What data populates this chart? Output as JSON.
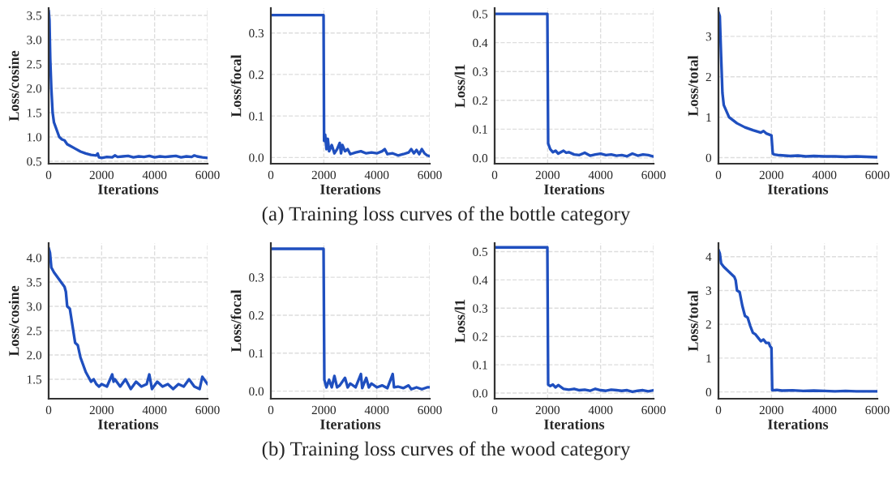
{
  "chart_data": [
    {
      "type": "line",
      "xlabel": "Iterations",
      "ylabel": "Loss/cosine",
      "color": "#1f4fbf",
      "grid": true,
      "xlim": [
        0,
        6000
      ],
      "xticks": [
        0,
        2000,
        4000,
        6000
      ],
      "ylim": [
        0.45,
        3.65
      ],
      "yticks": [
        0.5,
        {
          "value": 1,
          "label": "1.0"
        },
        1.5,
        {
          "value": 2,
          "label": "2.0"
        },
        2.5,
        {
          "value": 3,
          "label": "3.0"
        },
        3.5
      ],
      "annotations": [
        "(a) Training loss curves of the bottle category"
      ],
      "x": [
        0,
        30,
        60,
        100,
        150,
        200,
        300,
        400,
        500,
        600,
        700,
        800,
        1000,
        1200,
        1400,
        1600,
        1800,
        1850,
        1900,
        2000,
        2200,
        2400,
        2500,
        2600,
        2800,
        3000,
        3200,
        3400,
        3600,
        3800,
        4000,
        4200,
        4400,
        4600,
        4800,
        5000,
        5200,
        5400,
        5500,
        5600,
        5800,
        6000
      ],
      "values": [
        3.6,
        3.4,
        2.6,
        2.0,
        1.5,
        1.3,
        1.15,
        1.0,
        0.95,
        0.93,
        0.85,
        0.82,
        0.76,
        0.7,
        0.66,
        0.63,
        0.62,
        0.66,
        0.58,
        0.57,
        0.59,
        0.58,
        0.62,
        0.59,
        0.6,
        0.61,
        0.58,
        0.6,
        0.59,
        0.61,
        0.58,
        0.6,
        0.59,
        0.6,
        0.61,
        0.58,
        0.6,
        0.59,
        0.62,
        0.6,
        0.58,
        0.57
      ]
    },
    {
      "type": "line",
      "xlabel": "Iterations",
      "ylabel": "Loss/focal",
      "color": "#1f4fbf",
      "grid": true,
      "xlim": [
        0,
        6000
      ],
      "xticks": [
        0,
        2000,
        4000,
        6000
      ],
      "ylim": [
        -0.015,
        0.36
      ],
      "yticks": [
        {
          "value": 0,
          "label": "0.0"
        },
        0.1,
        0.2,
        0.3
      ],
      "x": [
        0,
        1990,
        2010,
        2050,
        2100,
        2150,
        2200,
        2300,
        2400,
        2500,
        2600,
        2650,
        2700,
        2800,
        2900,
        3000,
        3200,
        3400,
        3600,
        3800,
        4000,
        4200,
        4300,
        4400,
        4600,
        4800,
        5000,
        5200,
        5300,
        5400,
        5500,
        5600,
        5700,
        5800,
        5900,
        6000
      ],
      "values": [
        0.343,
        0.343,
        0.04,
        0.055,
        0.02,
        0.045,
        0.015,
        0.03,
        0.01,
        0.02,
        0.035,
        0.01,
        0.03,
        0.015,
        0.02,
        0.008,
        0.012,
        0.015,
        0.01,
        0.012,
        0.01,
        0.015,
        0.02,
        0.008,
        0.01,
        0.005,
        0.008,
        0.012,
        0.02,
        0.01,
        0.018,
        0.008,
        0.02,
        0.01,
        0.005,
        0.003
      ]
    },
    {
      "type": "line",
      "xlabel": "Iterations",
      "ylabel": "Loss/l1",
      "color": "#1f4fbf",
      "grid": true,
      "xlim": [
        0,
        6000
      ],
      "xticks": [
        0,
        2000,
        4000,
        6000
      ],
      "ylim": [
        -0.02,
        0.52
      ],
      "yticks": [
        {
          "value": 0,
          "label": "0.0"
        },
        0.1,
        0.2,
        0.3,
        0.4,
        0.5
      ],
      "x": [
        0,
        1990,
        2020,
        2100,
        2200,
        2300,
        2400,
        2500,
        2600,
        2700,
        2800,
        3000,
        3200,
        3400,
        3600,
        3800,
        4000,
        4200,
        4400,
        4600,
        4800,
        5000,
        5200,
        5400,
        5600,
        5800,
        6000
      ],
      "values": [
        0.5,
        0.5,
        0.05,
        0.03,
        0.02,
        0.025,
        0.015,
        0.02,
        0.025,
        0.018,
        0.02,
        0.012,
        0.01,
        0.018,
        0.008,
        0.012,
        0.015,
        0.01,
        0.012,
        0.008,
        0.01,
        0.006,
        0.015,
        0.008,
        0.012,
        0.01,
        0.005
      ]
    },
    {
      "type": "line",
      "xlabel": "Iterations",
      "ylabel": "Loss/total",
      "color": "#1f4fbf",
      "grid": true,
      "xlim": [
        0,
        6000
      ],
      "xticks": [
        0,
        2000,
        4000,
        6000
      ],
      "ylim": [
        -0.15,
        3.7
      ],
      "yticks": [
        0,
        1,
        2,
        3
      ],
      "x": [
        0,
        50,
        100,
        150,
        200,
        300,
        400,
        500,
        700,
        1000,
        1300,
        1600,
        1700,
        1800,
        2000,
        2050,
        2100,
        2300,
        2500,
        2700,
        3000,
        3300,
        3600,
        4000,
        4400,
        4800,
        5200,
        5600,
        6000
      ],
      "values": [
        3.6,
        3.5,
        2.5,
        1.6,
        1.3,
        1.15,
        1.0,
        0.95,
        0.85,
        0.75,
        0.68,
        0.62,
        0.66,
        0.6,
        0.55,
        0.1,
        0.08,
        0.06,
        0.05,
        0.04,
        0.05,
        0.03,
        0.04,
        0.03,
        0.03,
        0.02,
        0.03,
        0.02,
        0.01
      ]
    },
    {
      "type": "line",
      "xlabel": "Iterations",
      "ylabel": "Loss/cosine",
      "color": "#1f4fbf",
      "grid": true,
      "xlim": [
        0,
        6000
      ],
      "xticks": [
        0,
        2000,
        4000,
        6000
      ],
      "ylim": [
        1.1,
        4.3
      ],
      "yticks": [
        1.5,
        {
          "value": 2,
          "label": "2.0"
        },
        2.5,
        {
          "value": 3,
          "label": "3.0"
        },
        3.5,
        {
          "value": 4,
          "label": "4.0"
        }
      ],
      "annotations": [
        "(b) Training loss curves of the wood category"
      ],
      "x": [
        0,
        50,
        100,
        200,
        400,
        600,
        650,
        700,
        800,
        900,
        1000,
        1100,
        1200,
        1300,
        1400,
        1500,
        1600,
        1700,
        1800,
        1900,
        2000,
        2200,
        2400,
        2450,
        2500,
        2700,
        2900,
        3100,
        3300,
        3500,
        3700,
        3800,
        3900,
        4100,
        4300,
        4500,
        4700,
        4900,
        5100,
        5300,
        5500,
        5700,
        5800,
        6000
      ],
      "values": [
        4.2,
        4.1,
        3.8,
        3.7,
        3.55,
        3.4,
        3.3,
        3.0,
        2.95,
        2.6,
        2.25,
        2.2,
        1.95,
        1.8,
        1.65,
        1.55,
        1.45,
        1.5,
        1.4,
        1.35,
        1.4,
        1.35,
        1.6,
        1.45,
        1.5,
        1.35,
        1.5,
        1.3,
        1.45,
        1.35,
        1.4,
        1.6,
        1.3,
        1.45,
        1.35,
        1.4,
        1.3,
        1.4,
        1.35,
        1.5,
        1.35,
        1.3,
        1.55,
        1.4
      ]
    },
    {
      "type": "line",
      "xlabel": "Iterations",
      "ylabel": "Loss/focal",
      "color": "#1f4fbf",
      "grid": true,
      "xlim": [
        0,
        6000
      ],
      "xticks": [
        0,
        2000,
        4000,
        6000
      ],
      "ylim": [
        -0.02,
        0.39
      ],
      "yticks": [
        {
          "value": 0,
          "label": "0.0"
        },
        0.1,
        0.2,
        0.3
      ],
      "x": [
        0,
        1990,
        2020,
        2100,
        2200,
        2300,
        2400,
        2500,
        2600,
        2800,
        2900,
        3000,
        3200,
        3400,
        3450,
        3600,
        3700,
        3800,
        4000,
        4200,
        4400,
        4600,
        4650,
        4800,
        5000,
        5200,
        5300,
        5500,
        5700,
        5900,
        6000
      ],
      "values": [
        0.375,
        0.375,
        0.03,
        0.01,
        0.03,
        0.01,
        0.04,
        0.01,
        0.015,
        0.035,
        0.01,
        0.02,
        0.01,
        0.045,
        0.008,
        0.035,
        0.01,
        0.02,
        0.01,
        0.015,
        0.008,
        0.045,
        0.01,
        0.012,
        0.008,
        0.015,
        0.005,
        0.01,
        0.005,
        0.01,
        0.01
      ]
    },
    {
      "type": "line",
      "xlabel": "Iterations",
      "ylabel": "Loss/l1",
      "color": "#1f4fbf",
      "grid": true,
      "xlim": [
        0,
        6000
      ],
      "xticks": [
        0,
        2000,
        4000,
        6000
      ],
      "ylim": [
        -0.02,
        0.53
      ],
      "yticks": [
        {
          "value": 0,
          "label": "0.0"
        },
        0.1,
        0.2,
        0.3,
        0.4,
        0.5
      ],
      "x": [
        0,
        1990,
        2020,
        2100,
        2200,
        2300,
        2400,
        2600,
        2800,
        3000,
        3200,
        3400,
        3600,
        3800,
        4000,
        4200,
        4400,
        4600,
        4800,
        5000,
        5200,
        5400,
        5600,
        5800,
        6000
      ],
      "values": [
        0.515,
        0.515,
        0.03,
        0.025,
        0.03,
        0.02,
        0.028,
        0.015,
        0.012,
        0.015,
        0.01,
        0.012,
        0.008,
        0.015,
        0.01,
        0.008,
        0.012,
        0.01,
        0.008,
        0.01,
        0.005,
        0.008,
        0.01,
        0.006,
        0.01
      ]
    },
    {
      "type": "line",
      "xlabel": "Iterations",
      "ylabel": "Loss/total",
      "color": "#1f4fbf",
      "grid": true,
      "xlim": [
        0,
        6000
      ],
      "xticks": [
        0,
        2000,
        4000,
        6000
      ],
      "ylim": [
        -0.2,
        4.4
      ],
      "yticks": [
        0,
        1,
        2,
        3,
        4
      ],
      "x": [
        0,
        50,
        100,
        200,
        400,
        600,
        650,
        700,
        800,
        900,
        1000,
        1100,
        1200,
        1300,
        1400,
        1500,
        1600,
        1700,
        1800,
        1900,
        1950,
        2000,
        2030,
        2200,
        2400,
        2800,
        3200,
        3600,
        4000,
        4400,
        4800,
        5200,
        5600,
        6000
      ],
      "values": [
        4.2,
        4.1,
        3.8,
        3.7,
        3.55,
        3.4,
        3.3,
        3.0,
        2.95,
        2.55,
        2.25,
        2.2,
        1.95,
        1.75,
        1.7,
        1.6,
        1.5,
        1.55,
        1.45,
        1.45,
        1.35,
        1.3,
        0.05,
        0.06,
        0.04,
        0.05,
        0.03,
        0.04,
        0.03,
        0.02,
        0.03,
        0.02,
        0.02,
        0.02
      ]
    }
  ]
}
